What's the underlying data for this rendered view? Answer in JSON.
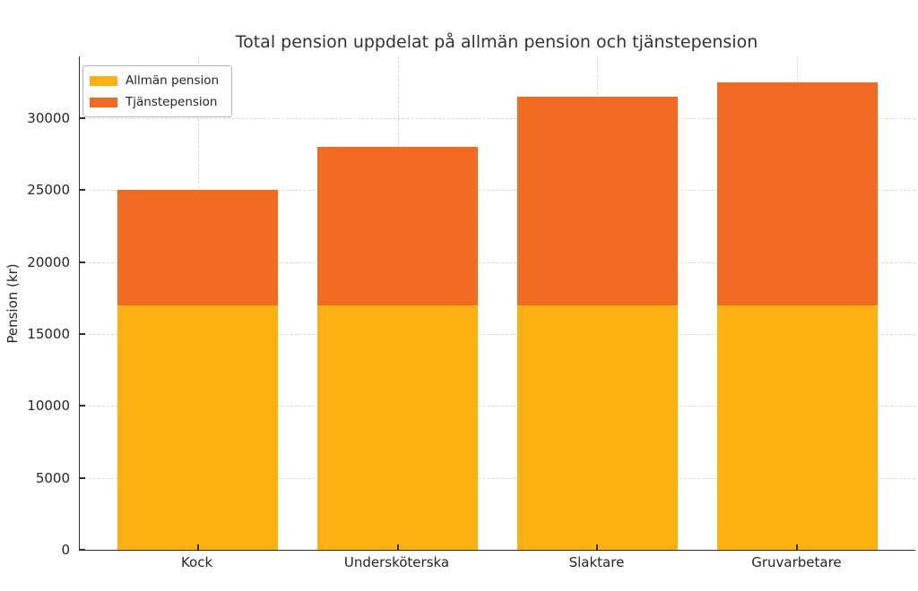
{
  "chart_data": {
    "type": "bar",
    "stacked": true,
    "title": "Total pension uppdelat på allmän pension och tjänstepension",
    "xlabel": "",
    "ylabel": "Pension (kr)",
    "categories": [
      "Kock",
      "Undersköterska",
      "Slaktare",
      "Gruvarbetare"
    ],
    "series": [
      {
        "name": "Allmän pension",
        "color": "#fdb011",
        "values": [
          17000,
          17000,
          17000,
          17000
        ]
      },
      {
        "name": "Tjänstepension",
        "color": "#f16c22",
        "values": [
          8000,
          11000,
          14500,
          15500
        ]
      }
    ],
    "totals": [
      25000,
      28000,
      31500,
      32500
    ],
    "yticks": [
      0,
      5000,
      10000,
      15000,
      20000,
      25000,
      30000
    ],
    "ylim": [
      0,
      34300
    ],
    "grid": {
      "visible": true,
      "style": "dashed",
      "color": "#d9d9d9",
      "axes": "both"
    },
    "legend": {
      "position": "upper-left",
      "entries": [
        "Allmän pension",
        "Tjänstepension"
      ]
    },
    "colors": {
      "axis": "#2e2e2e",
      "text": "#262626",
      "grid": "#d9d9d9",
      "background": "#ffffff"
    }
  }
}
